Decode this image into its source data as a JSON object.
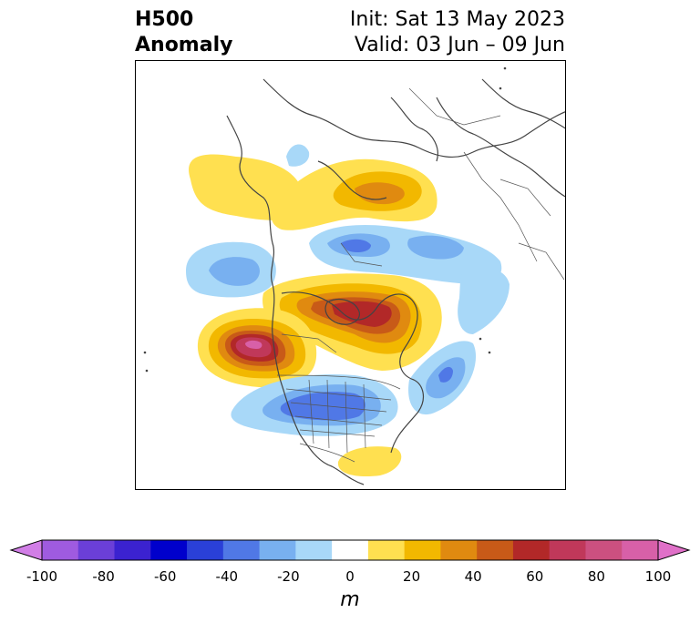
{
  "header": {
    "variable": "H500",
    "subtitle": "Anomaly",
    "init": "Init: Sat 13 May 2023",
    "valid": "Valid: 03 Jun – 09 Jun"
  },
  "map": {
    "region": "North America / Arctic (polar projection)",
    "anomaly_centers": [
      {
        "location": "NE Pacific / off US West Coast",
        "sign": "positive",
        "value": 80
      },
      {
        "location": "Hudson Bay / central Canada",
        "sign": "positive",
        "value": 60
      },
      {
        "location": "Arctic / north of Siberia",
        "sign": "positive",
        "value": 40
      },
      {
        "location": "Gulf of Alaska (north)",
        "sign": "positive",
        "value": 20
      },
      {
        "location": "Gulf of Mexico",
        "sign": "positive",
        "value": 20
      },
      {
        "location": "Central/Eastern US",
        "sign": "negative",
        "value": -40
      },
      {
        "location": "North Atlantic",
        "sign": "negative",
        "value": -40
      },
      {
        "location": "Arctic Ocean",
        "sign": "negative",
        "value": -40
      },
      {
        "location": "Bering Sea",
        "sign": "negative",
        "value": -30
      }
    ]
  },
  "colorbar": {
    "unit": "m",
    "ticks": [
      "-100",
      "-80",
      "-60",
      "-40",
      "-20",
      "0",
      "20",
      "40",
      "60",
      "80",
      "100"
    ],
    "bounds": [
      -100,
      100
    ],
    "colors": [
      "#d17ee6",
      "#9f5be0",
      "#6b3fd8",
      "#3b22d0",
      "#0000cc",
      "#2a40d8",
      "#5078e6",
      "#78b0f0",
      "#a8d8f8",
      "#ffffff",
      "#ffe050",
      "#f2b800",
      "#e08a10",
      "#c85a18",
      "#b22828",
      "#c0385a",
      "#cc5080",
      "#d860a8",
      "#e070c8"
    ]
  }
}
